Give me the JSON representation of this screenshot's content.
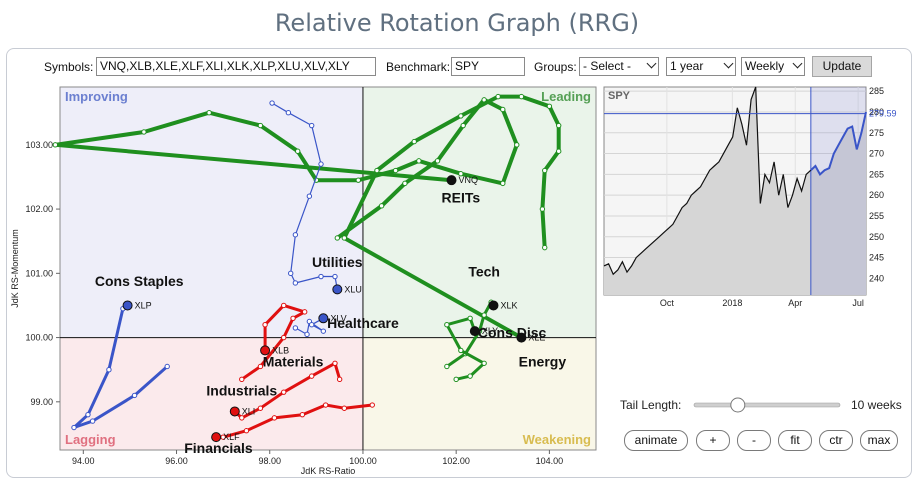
{
  "title": "Relative Rotation Graph (RRG)",
  "controls": {
    "symbols_label": "Symbols:",
    "symbols_value": "VNQ,XLB,XLE,XLF,XLI,XLK,XLP,XLU,XLV,XLY",
    "benchmark_label": "Benchmark:",
    "benchmark_value": "SPY",
    "groups_label": "Groups:",
    "groups_value": "- Select -",
    "period_value": "1 year",
    "frequency_value": "Weekly",
    "update_label": "Update"
  },
  "tail": {
    "label": "Tail Length:",
    "value_label": "10 weeks",
    "fraction": 0.3
  },
  "buttons": [
    "animate",
    "+",
    "-",
    "fit",
    "ctr",
    "max"
  ],
  "chart_data": [
    {
      "type": "scatter",
      "subtype": "relative-rotation-graph",
      "xlabel": "JdK RS-Ratio",
      "ylabel": "JdK RS-Momentum",
      "xlim": [
        93.5,
        105.0
      ],
      "ylim": [
        98.25,
        103.9
      ],
      "xticks": [
        94,
        96,
        98,
        100,
        102,
        104
      ],
      "xtick_labels": [
        "94.00",
        "96.00",
        "98.00",
        "100.00",
        "102.00",
        "104.00"
      ],
      "yticks": [
        99,
        100,
        101,
        102,
        103
      ],
      "ytick_labels": [
        "99.00",
        "100.00",
        "101.00",
        "102.00",
        "103.00"
      ],
      "center": [
        100,
        100
      ],
      "quadrants": [
        {
          "name": "Improving",
          "color": "#6b7fd0",
          "fill": "#eeeef9",
          "corner": "top-left"
        },
        {
          "name": "Leading",
          "color": "#55a055",
          "fill": "#eaf4ea",
          "corner": "top-right"
        },
        {
          "name": "Lagging",
          "color": "#e07080",
          "fill": "#fbeaec",
          "corner": "bottom-left"
        },
        {
          "name": "Weakening",
          "color": "#d8bc50",
          "fill": "#f9f7e8",
          "corner": "bottom-right"
        }
      ],
      "series": [
        {
          "symbol": "VNQ",
          "group_label": "REITs",
          "color": "#1f8f1f",
          "tail": [
            [
              99.45,
              101.55
            ],
            [
              100.4,
              102.05
            ],
            [
              100.9,
              102.4
            ],
            [
              101.6,
              102.75
            ],
            [
              102.15,
              103.3
            ],
            [
              102.6,
              103.7
            ],
            [
              103.0,
              103.55
            ],
            [
              103.3,
              103.0
            ],
            [
              103.0,
              102.4
            ],
            [
              102.1,
              102.55
            ],
            [
              101.2,
              102.75
            ],
            [
              100.7,
              102.6
            ],
            [
              99.9,
              102.45
            ],
            [
              99.0,
              102.45
            ],
            [
              98.6,
              102.9
            ],
            [
              97.8,
              103.3
            ],
            [
              96.7,
              103.5
            ],
            [
              95.3,
              103.2
            ],
            [
              93.4,
              103.0
            ]
          ],
          "endpoint": [
            101.9,
            102.45
          ],
          "group_label_pos": [
            102.1,
            102.1
          ]
        },
        {
          "symbol": "XLE",
          "group_label": "Energy",
          "color": "#1f8f1f",
          "tail": [
            [
              103.9,
              101.4
            ],
            [
              103.85,
              102.0
            ],
            [
              103.9,
              102.6
            ],
            [
              104.2,
              102.9
            ],
            [
              104.2,
              103.3
            ],
            [
              104.0,
              103.6
            ],
            [
              103.4,
              103.75
            ],
            [
              102.9,
              103.75
            ],
            [
              102.1,
              103.45
            ],
            [
              101.1,
              103.05
            ],
            [
              100.3,
              102.6
            ],
            [
              99.6,
              101.55
            ]
          ],
          "endpoint": [
            103.4,
            100.0
          ],
          "group_label_pos": [
            103.85,
            99.55
          ],
          "tail_direction": "reverse"
        },
        {
          "symbol": "XLK",
          "group_label": "Tech",
          "color": "#1f8f1f",
          "tail": [
            [
              101.8,
              99.55
            ],
            [
              102.2,
              99.75
            ],
            [
              102.5,
              100.1
            ],
            [
              102.6,
              100.35
            ],
            [
              102.75,
              100.55
            ]
          ],
          "endpoint": [
            102.8,
            100.5
          ],
          "group_label_pos": [
            102.6,
            100.95
          ]
        },
        {
          "symbol": "XLY",
          "group_label": "Cons Disc",
          "color": "#1f8f1f",
          "tail": [
            [
              102.0,
              99.35
            ],
            [
              102.3,
              99.4
            ],
            [
              102.6,
              99.6
            ],
            [
              102.1,
              99.8
            ],
            [
              101.8,
              100.2
            ],
            [
              102.3,
              100.3
            ]
          ],
          "endpoint": [
            102.4,
            100.1
          ],
          "group_label_pos": [
            103.2,
            100.0
          ]
        },
        {
          "symbol": "XLU",
          "group_label": "Utilities",
          "color": "#3a55c8",
          "tail": [
            [
              98.05,
              103.65
            ],
            [
              98.4,
              103.5
            ],
            [
              98.9,
              103.3
            ],
            [
              99.1,
              102.7
            ],
            [
              98.85,
              102.2
            ],
            [
              98.55,
              101.6
            ],
            [
              98.45,
              101.0
            ],
            [
              98.55,
              100.85
            ],
            [
              99.1,
              100.95
            ],
            [
              99.4,
              100.95
            ]
          ],
          "endpoint": [
            99.45,
            100.75
          ],
          "group_label_pos": [
            99.45,
            101.1
          ]
        },
        {
          "symbol": "XLV",
          "group_label": "Healthcare",
          "color": "#3a55c8",
          "tail": [
            [
              98.55,
              100.15
            ],
            [
              98.8,
              100.05
            ],
            [
              98.85,
              100.25
            ],
            [
              99.15,
              100.1
            ],
            [
              98.9,
              100.2
            ]
          ],
          "endpoint": [
            99.15,
            100.3
          ],
          "group_label_pos": [
            100.0,
            100.15
          ]
        },
        {
          "symbol": "XLP",
          "group_label": "Cons Staples",
          "color": "#3a55c8",
          "tail": [
            [
              95.8,
              99.55
            ],
            [
              95.1,
              99.1
            ],
            [
              94.2,
              98.7
            ],
            [
              93.8,
              98.6
            ],
            [
              94.1,
              98.8
            ],
            [
              94.55,
              99.5
            ],
            [
              94.85,
              100.45
            ]
          ],
          "endpoint": [
            94.95,
            100.5
          ],
          "group_label_pos": [
            95.2,
            100.8
          ]
        },
        {
          "symbol": "XLB",
          "group_label": "Materials",
          "color": "#e01010",
          "tail": [
            [
              97.4,
              99.35
            ],
            [
              97.8,
              99.55
            ],
            [
              98.3,
              100.0
            ],
            [
              98.5,
              100.3
            ],
            [
              98.75,
              100.4
            ],
            [
              98.3,
              100.5
            ],
            [
              97.9,
              100.2
            ]
          ],
          "endpoint": [
            97.9,
            99.8
          ],
          "group_label_pos": [
            98.5,
            99.55
          ]
        },
        {
          "symbol": "XLI",
          "group_label": "Industrials",
          "color": "#e01010",
          "tail": [
            [
              99.5,
              99.35
            ],
            [
              99.4,
              99.6
            ],
            [
              98.9,
              99.4
            ],
            [
              98.3,
              99.15
            ],
            [
              97.8,
              98.9
            ],
            [
              97.4,
              98.75
            ]
          ],
          "endpoint": [
            97.25,
            98.85
          ],
          "group_label_pos": [
            97.4,
            99.1
          ]
        },
        {
          "symbol": "XLF",
          "group_label": "Financials",
          "color": "#e01010",
          "tail": [
            [
              100.2,
              98.95
            ],
            [
              99.6,
              98.9
            ],
            [
              99.2,
              98.95
            ],
            [
              98.7,
              98.8
            ],
            [
              98.1,
              98.75
            ],
            [
              97.5,
              98.55
            ],
            [
              97.0,
              98.45
            ]
          ],
          "endpoint": [
            96.85,
            98.45
          ],
          "group_label_pos": [
            96.9,
            98.2
          ]
        }
      ]
    },
    {
      "type": "area",
      "title": "SPY",
      "xtick_labels": [
        "Oct",
        "2018",
        "Apr",
        "Jul"
      ],
      "ytick_labels": [
        "240",
        "245",
        "250",
        "255",
        "260",
        "265",
        "270",
        "275",
        "280",
        "285"
      ],
      "ylim": [
        236,
        286
      ],
      "last_value_label": "279.59",
      "series": [
        {
          "name": "SPY",
          "values": [
            243,
            243.5,
            241,
            242,
            244,
            241.5,
            243,
            245,
            246,
            247,
            248,
            249,
            250,
            251,
            252,
            253,
            255,
            257,
            258,
            260,
            261,
            262,
            264,
            266,
            267,
            268,
            270,
            272,
            274,
            281,
            277,
            272,
            283,
            286,
            258,
            265,
            263,
            268,
            260,
            265,
            257,
            260,
            264,
            261,
            265,
            266,
            267,
            265,
            266,
            266.5,
            270,
            272,
            274,
            276,
            276.5,
            271,
            275,
            280
          ]
        }
      ],
      "highlight_start_index": 45
    }
  ]
}
